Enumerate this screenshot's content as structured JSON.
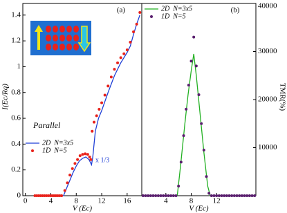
{
  "chart_data": [
    {
      "type": "line",
      "panel_label": "(a)",
      "x_label": "V (Ec)",
      "y_label": "I(Ec/Rq)",
      "xlim": [
        -0.4,
        18.3
      ],
      "xticks": [
        0,
        4,
        8,
        12,
        16
      ],
      "ylim": [
        0,
        1.49
      ],
      "yticks": [
        0,
        0.2,
        0.4,
        0.6,
        0.8,
        1,
        1.2,
        1.4
      ],
      "annotations": [
        "Parallel",
        "x 1/3"
      ],
      "legend": "lower left",
      "series": [
        {
          "name": "2D  N=3x5",
          "color": "#1f3fd6",
          "mode": "line",
          "x": [
            1.5,
            6,
            6.5,
            7,
            7.5,
            8,
            8.5,
            9,
            9.5,
            10,
            10.4,
            10.6,
            11,
            11.5,
            12,
            13,
            14,
            15,
            16,
            16.5,
            17,
            17.5,
            18
          ],
          "values": [
            0,
            0,
            0.06,
            0.12,
            0.18,
            0.23,
            0.27,
            0.29,
            0.3,
            0.28,
            0.24,
            0.3,
            0.5,
            0.6,
            0.66,
            0.8,
            0.93,
            1.03,
            1.11,
            1.16,
            1.25,
            1.33,
            1.4
          ]
        },
        {
          "name": "1D  N=5",
          "color": "#e8221b",
          "mode": "markers",
          "x": [
            1.5,
            1.8,
            2.1,
            2.4,
            2.7,
            3,
            3.3,
            3.6,
            3.9,
            4.2,
            4.5,
            4.8,
            5.1,
            5.4,
            5.7,
            6.2,
            6.6,
            7,
            7.4,
            7.8,
            8.2,
            8.6,
            9,
            9.4,
            9.8,
            10.1,
            10.3,
            10.5,
            10.8,
            11.2,
            11.6,
            12,
            12.5,
            13,
            13.5,
            14,
            14.5,
            15,
            15.5,
            16,
            16.5,
            17,
            17.5,
            18
          ],
          "values": [
            0,
            0,
            0,
            0,
            0,
            0,
            0,
            0,
            0,
            0,
            0,
            0,
            0,
            0,
            0,
            0.04,
            0.1,
            0.16,
            0.21,
            0.25,
            0.28,
            0.31,
            0.32,
            0.325,
            0.32,
            0.3,
            0.28,
            0.5,
            0.57,
            0.62,
            0.67,
            0.72,
            0.78,
            0.85,
            0.92,
            0.98,
            1.03,
            1.07,
            1.1,
            1.13,
            1.19,
            1.27,
            1.33,
            1.42
          ]
        }
      ]
    },
    {
      "type": "line",
      "panel_label": "(b)",
      "x_label": "V (Ec)",
      "y2_label": "TMR(%)",
      "xlim": [
        0.2,
        18.2
      ],
      "xticks": [
        4,
        8,
        12
      ],
      "y2lim": [
        0,
        40000
      ],
      "y2ticks": [
        10000,
        20000,
        30000,
        40000
      ],
      "legend": "upper left",
      "series": [
        {
          "name": "2D  N=3x5",
          "color": "#22b022",
          "mode": "line",
          "axis": "y2",
          "x": [
            0.3,
            5.8,
            6.3,
            7,
            7.5,
            8,
            8.4,
            8.8,
            9.4,
            10,
            10.6,
            11,
            18
          ],
          "values": [
            0,
            0,
            6000,
            15000,
            21000,
            26000,
            29500,
            25000,
            17000,
            9000,
            2000,
            0,
            0
          ]
        },
        {
          "name": "1D  N=5",
          "color": "#5a1f6e",
          "mode": "markers",
          "axis": "y2",
          "x": [
            0.4,
            0.8,
            1.2,
            1.6,
            2,
            2.4,
            2.8,
            3.2,
            3.6,
            4,
            4.4,
            4.8,
            5.2,
            5.6,
            6,
            6.4,
            6.8,
            7.2,
            7.6,
            8,
            8.4,
            8.8,
            9.2,
            9.6,
            10,
            10.4,
            10.8,
            11.2,
            11.6,
            12,
            12.4,
            12.8,
            13.2,
            13.6,
            14,
            14.4,
            14.8,
            15.2,
            15.6,
            16,
            16.4,
            16.8,
            17.2,
            17.6,
            18
          ],
          "values": [
            0,
            0,
            0,
            0,
            0,
            0,
            0,
            0,
            0,
            0,
            0,
            0,
            0,
            0,
            2000,
            7000,
            12500,
            18000,
            23000,
            28000,
            33000,
            27000,
            21000,
            15000,
            9500,
            4000,
            500,
            0,
            0,
            0,
            0,
            0,
            0,
            0,
            0,
            0,
            0,
            0,
            0,
            0,
            0,
            0,
            0,
            0,
            0
          ]
        }
      ]
    }
  ]
}
